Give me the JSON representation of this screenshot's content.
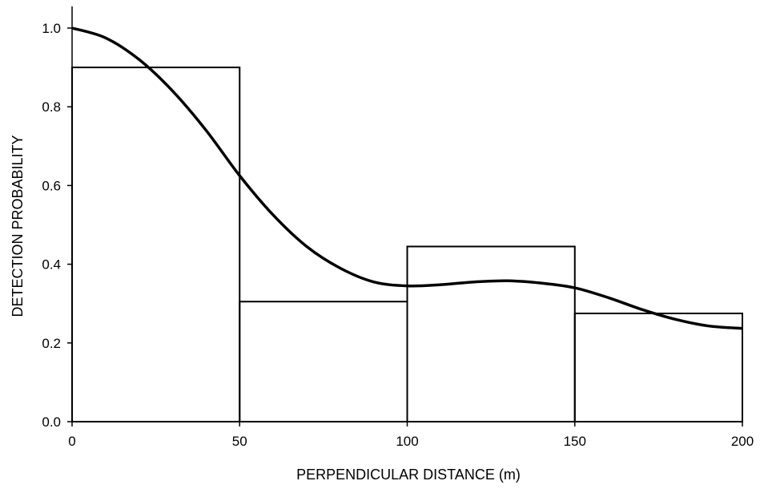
{
  "chart_data": {
    "type": "bar",
    "xlabel": "PERPENDICULAR DISTANCE  (m)",
    "ylabel": "DETECTION PROBABILITY",
    "xlim": [
      0,
      200
    ],
    "ylim": [
      0,
      1.0
    ],
    "x_ticks": [
      "0",
      "50",
      "100",
      "150",
      "200"
    ],
    "y_ticks": [
      "0.0",
      "0.2",
      "0.4",
      "0.6",
      "0.8",
      "1.0"
    ],
    "grid": false,
    "histogram": {
      "bin_edges": [
        0,
        50,
        100,
        150,
        200
      ],
      "values": [
        0.9,
        0.305,
        0.445,
        0.275
      ]
    },
    "fitted_curve": {
      "x": [
        0,
        10,
        20,
        30,
        40,
        50,
        60,
        70,
        80,
        90,
        100,
        110,
        120,
        130,
        140,
        150,
        160,
        170,
        180,
        190,
        200
      ],
      "y": [
        1.0,
        0.975,
        0.92,
        0.84,
        0.74,
        0.625,
        0.525,
        0.445,
        0.39,
        0.355,
        0.345,
        0.348,
        0.355,
        0.358,
        0.352,
        0.34,
        0.315,
        0.285,
        0.26,
        0.243,
        0.237
      ]
    },
    "colors": {
      "line": "#000000",
      "background": "#ffffff"
    }
  }
}
